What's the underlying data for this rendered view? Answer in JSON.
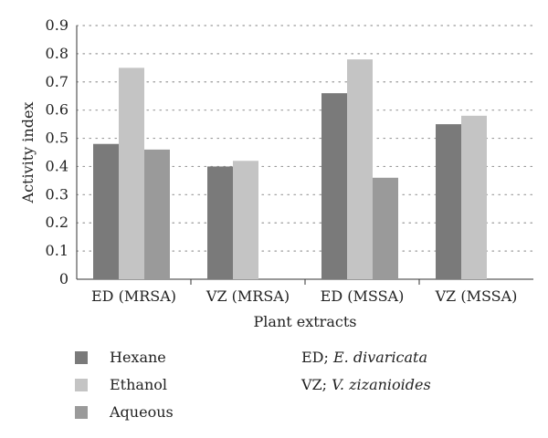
{
  "chart_data": {
    "type": "bar",
    "ylabel": "Activity index",
    "xlabel": "Plant extracts",
    "ylim": [
      0,
      0.9
    ],
    "yticks": [
      "0",
      "0.1",
      "0.2",
      "0.3",
      "0.4",
      "0.5",
      "0.6",
      "0.7",
      "0.8",
      "0.9"
    ],
    "categories": [
      "ED (MRSA)",
      "VZ (MRSA)",
      "ED (MSSA)",
      "VZ (MSSA)"
    ],
    "series": [
      {
        "name": "Hexane",
        "color": "#7a7a7a",
        "values": [
          0.48,
          0.4,
          0.66,
          0.55
        ]
      },
      {
        "name": "Ethanol",
        "color": "#c4c4c4",
        "values": [
          0.75,
          0.42,
          0.78,
          0.58
        ]
      },
      {
        "name": "Aqueous",
        "color": "#9a9a9a",
        "values": [
          0.46,
          null,
          0.36,
          null
        ]
      }
    ],
    "grid": "horizontal-dotted",
    "legend_placement": "bottom-left"
  },
  "notes": [
    {
      "abbr": "ED;",
      "name": "E. divaricata"
    },
    {
      "abbr": "VZ;",
      "name": "V. zizanioides"
    }
  ]
}
